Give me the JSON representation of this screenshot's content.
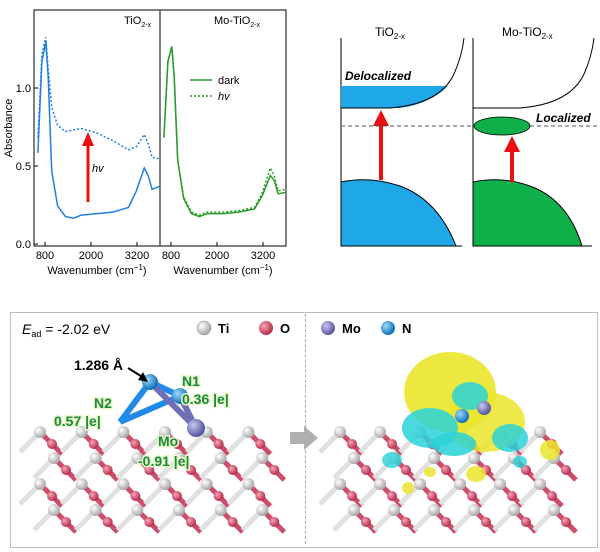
{
  "spectra": {
    "ylabel": "Absorbance",
    "xlabel": "Wavenumber (cm",
    "xlabel_sup": "−1",
    "xlabel_close": ")",
    "yticks": [
      "0.0",
      "0.5",
      "1.0"
    ],
    "xticks": [
      "800",
      "2000",
      "3200"
    ],
    "left_panel": {
      "title": "TiO",
      "title_sub": "2-x",
      "arrow_label": "hv"
    },
    "right_panel": {
      "title": "Mo-TiO",
      "title_sub": "2-x"
    },
    "legend": [
      {
        "label": "dark",
        "style": "solid"
      },
      {
        "label": "hv",
        "style": "dotted"
      }
    ],
    "colors": {
      "tio2": "#1f7fe0",
      "mo_tio2": "#2a9a2a"
    }
  },
  "chart_data": [
    {
      "type": "line",
      "title": "TiO2-x",
      "xlabel": "Wavenumber (cm−1)",
      "ylabel": "Absorbance",
      "ylim": [
        0,
        1.5
      ],
      "xlim": [
        400,
        3600
      ],
      "series": [
        {
          "name": "dark",
          "x": [
            500,
            600,
            700,
            760,
            850,
            1000,
            1200,
            1400,
            1600,
            2000,
            2400,
            2800,
            3000,
            3200,
            3300,
            3400,
            3600
          ],
          "y": [
            0.6,
            1.2,
            1.33,
            1.1,
            0.48,
            0.25,
            0.18,
            0.17,
            0.19,
            0.2,
            0.21,
            0.24,
            0.35,
            0.5,
            0.45,
            0.36,
            0.38
          ]
        },
        {
          "name": "hv",
          "x": [
            500,
            600,
            700,
            760,
            850,
            1000,
            1200,
            1400,
            1600,
            2000,
            2400,
            2800,
            3000,
            3200,
            3300,
            3400,
            3600
          ],
          "y": [
            0.7,
            1.25,
            1.36,
            1.15,
            0.9,
            0.78,
            0.74,
            0.75,
            0.76,
            0.73,
            0.68,
            0.62,
            0.64,
            0.72,
            0.66,
            0.57,
            0.56
          ]
        }
      ]
    },
    {
      "type": "line",
      "title": "Mo-TiO2-x",
      "xlabel": "Wavenumber (cm−1)",
      "ylim": [
        0,
        1.5
      ],
      "xlim": [
        400,
        3600
      ],
      "series": [
        {
          "name": "dark",
          "x": [
            500,
            600,
            700,
            760,
            850,
            1000,
            1200,
            1400,
            1600,
            2000,
            2400,
            2800,
            3000,
            3200,
            3300,
            3400,
            3600
          ],
          "y": [
            0.7,
            1.2,
            1.3,
            1.1,
            0.55,
            0.3,
            0.2,
            0.18,
            0.2,
            0.2,
            0.21,
            0.23,
            0.32,
            0.45,
            0.42,
            0.33,
            0.34
          ]
        },
        {
          "name": "hv",
          "x": [
            500,
            600,
            700,
            760,
            850,
            1000,
            1200,
            1400,
            1600,
            2000,
            2400,
            2800,
            3000,
            3200,
            3300,
            3400,
            3600
          ],
          "y": [
            0.7,
            1.2,
            1.3,
            1.1,
            0.55,
            0.31,
            0.21,
            0.19,
            0.21,
            0.21,
            0.22,
            0.24,
            0.34,
            0.5,
            0.45,
            0.35,
            0.36
          ]
        }
      ]
    }
  ],
  "band_diagrams": {
    "left": {
      "title": "TiO",
      "title_sub": "2-x",
      "state_label": "Delocalized",
      "fill": "#1fa8e8"
    },
    "right": {
      "title": "Mo-TiO",
      "title_sub": "2-x",
      "state_label": "Localized",
      "fill": "#0fb04a"
    },
    "arrow_color": "#e81010"
  },
  "structure": {
    "eads_symbol": "E",
    "eads_sub": "ad",
    "eads_value": " = -2.02 eV",
    "legend": [
      {
        "label": "Ti",
        "color": "#e8e8e8"
      },
      {
        "label": "O",
        "color": "#d9506a"
      },
      {
        "label": "Mo",
        "color": "#7f7fc0"
      },
      {
        "label": "N",
        "color": "#1f9ae8"
      }
    ],
    "bond_length": "1.286 Å",
    "n1_label": "N1",
    "n1_charge": "0.36 |e|",
    "n2_label": "N2",
    "n2_charge": "0.57 |e|",
    "mo_label": "Mo",
    "mo_charge": "-0.91 |e|"
  }
}
